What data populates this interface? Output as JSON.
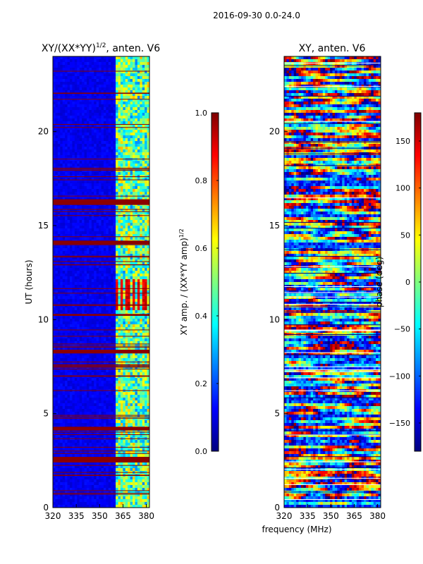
{
  "suptitle": "2016-09-30 0.0-24.0",
  "shared": {
    "xlabel": "frequency (MHz)",
    "ylabel": "UT (hours)"
  },
  "colors": {
    "jet_stops": [
      "#00007f",
      "#0000ff",
      "#007fff",
      "#00ffff",
      "#7fff7f",
      "#ffff00",
      "#ff7f00",
      "#ff0000",
      "#7f0000"
    ]
  },
  "chart_data": [
    {
      "type": "heatmap",
      "title": "XY/(XX*YY)^{1/2}, anten. V6",
      "title_main": "XY/(XX*YY)",
      "title_sup": "1/2",
      "title_rest": ", anten. V6",
      "xlabel": "frequency (MHz)",
      "ylabel": "UT (hours)",
      "xlim": [
        320,
        382
      ],
      "ylim": [
        0,
        24
      ],
      "xticks": [
        320,
        335,
        350,
        365,
        380
      ],
      "yticks": [
        0,
        5,
        10,
        15,
        20
      ],
      "xtick_labels": [
        "320",
        "335",
        "350",
        "365",
        "380"
      ],
      "ytick_labels": [
        "0",
        "5",
        "10",
        "15",
        "20"
      ],
      "colorbar": {
        "label_main": "XY amp. / (XX*YY amp)",
        "label_sup": "1/2",
        "range": [
          0.0,
          1.0
        ],
        "ticks": [
          0.0,
          0.2,
          0.4,
          0.6,
          0.8,
          1.0
        ],
        "tick_labels": [
          "0.0",
          "0.2",
          "0.4",
          "0.6",
          "0.8",
          "1.0"
        ]
      },
      "flag_bands_hours": [
        [
          2.4,
          2.7
        ],
        [
          4.1,
          4.3
        ],
        [
          8.2,
          8.4
        ],
        [
          10.2,
          10.3
        ],
        [
          14.0,
          14.2
        ],
        [
          16.1,
          16.4
        ]
      ],
      "active_band_MHz": [
        359,
        383
      ]
    },
    {
      "type": "heatmap",
      "title": "XY, anten. V6",
      "xlabel": "frequency (MHz)",
      "ylabel": "",
      "xlim": [
        320,
        382
      ],
      "ylim": [
        0,
        24
      ],
      "xticks": [
        320,
        335,
        350,
        365,
        380
      ],
      "yticks": [
        0,
        5,
        10,
        15,
        20
      ],
      "xtick_labels": [
        "320",
        "335",
        "350",
        "365",
        "380"
      ],
      "ytick_labels": [
        "0",
        "5",
        "10",
        "15",
        "20"
      ],
      "colorbar": {
        "label": "phase (deg)",
        "range": [
          -180,
          180
        ],
        "ticks": [
          -150,
          -100,
          -50,
          0,
          50,
          100,
          150
        ],
        "tick_labels": [
          "−150",
          "−100",
          "−50",
          "0",
          "50",
          "100",
          "150"
        ]
      }
    }
  ]
}
